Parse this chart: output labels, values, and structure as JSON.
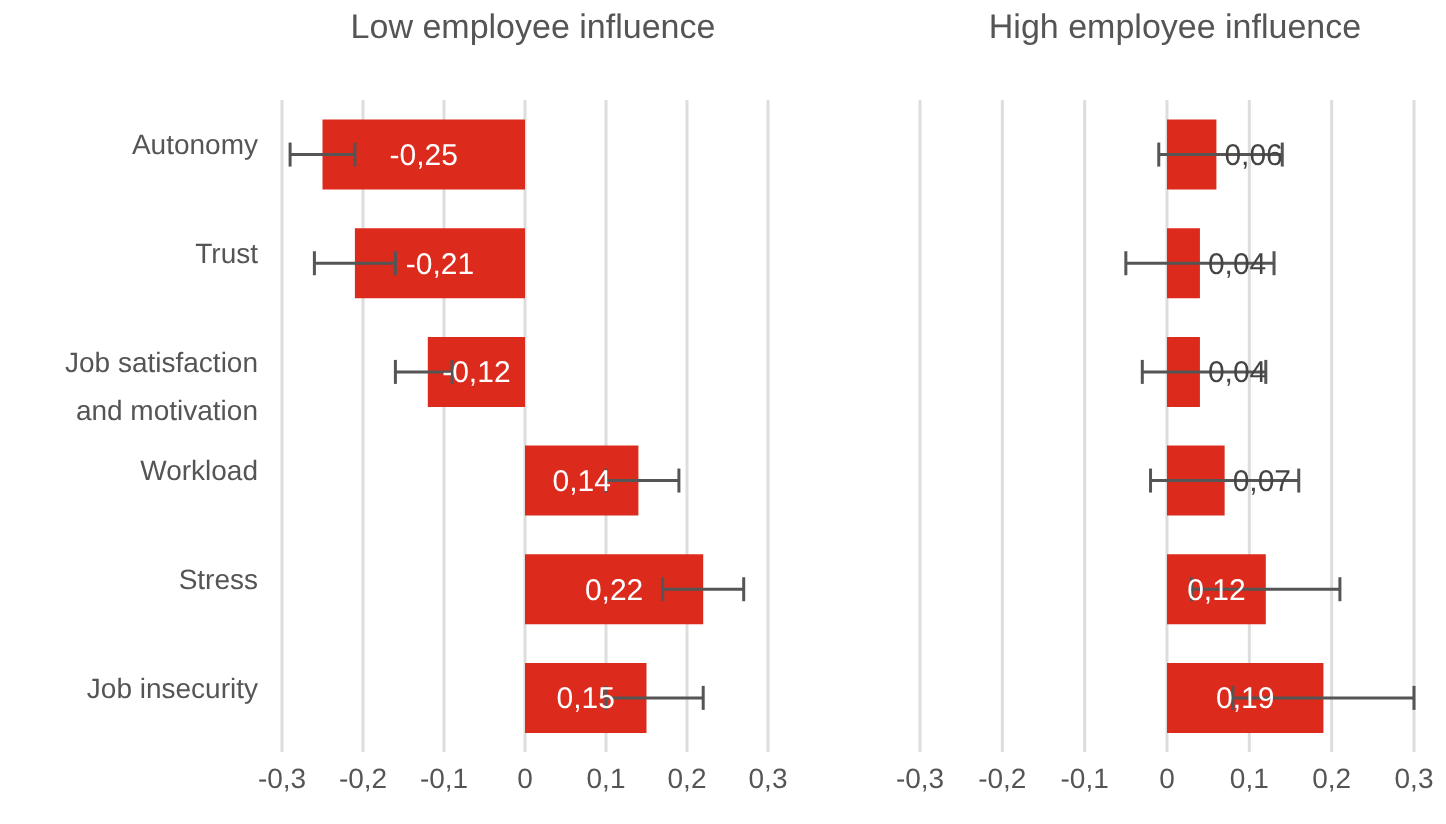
{
  "chart_data": [
    {
      "type": "bar",
      "orientation": "horizontal",
      "title": "Low employee influence",
      "categories": [
        "Autonomy",
        "Trust",
        "Job satisfaction and motivation",
        "Workload",
        "Stress",
        "Job insecurity"
      ],
      "values": [
        -0.25,
        -0.21,
        -0.12,
        0.14,
        0.22,
        0.15
      ],
      "errors": [
        [
          -0.29,
          -0.21
        ],
        [
          -0.26,
          -0.16
        ],
        [
          -0.16,
          -0.09
        ],
        [
          0.1,
          0.19
        ],
        [
          0.17,
          0.27
        ],
        [
          0.1,
          0.22
        ]
      ],
      "value_labels": [
        "-0,25",
        "-0,21",
        "-0,12",
        "0,14",
        "0,22",
        "0,15"
      ],
      "color": "#dc2a1c",
      "xlim": [
        -0.3,
        0.3
      ],
      "xticks": [
        {
          "value": -0.3,
          "label": "-0,3"
        },
        {
          "value": -0.2,
          "label": "-0,2"
        },
        {
          "value": -0.1,
          "label": "-0,1"
        },
        0,
        {
          "value": 0.1,
          "label": "0,1"
        },
        {
          "value": 0.2,
          "label": "0,2"
        },
        {
          "value": 0.3,
          "label": "0,3"
        }
      ],
      "grid": "x"
    },
    {
      "type": "bar",
      "orientation": "horizontal",
      "title": "High employee influence",
      "categories": [
        null,
        null,
        null,
        null,
        null,
        null
      ],
      "values": [
        0.06,
        0.04,
        0.04,
        0.07,
        0.12,
        0.19
      ],
      "errors": [
        [
          -0.01,
          0.14
        ],
        [
          -0.05,
          0.13
        ],
        [
          -0.03,
          0.12
        ],
        [
          -0.02,
          0.16
        ],
        [
          0.03,
          0.21
        ],
        [
          0.08,
          0.3
        ]
      ],
      "value_labels": [
        "0,06",
        "0,04",
        "0,04",
        "0,07",
        "0,12",
        "0,19"
      ],
      "color": "#dc2a1c",
      "xlim": [
        -0.3,
        0.3
      ],
      "xticks": [
        {
          "value": -0.3,
          "label": "-0,3"
        },
        {
          "value": -0.2,
          "label": "-0,2"
        },
        {
          "value": -0.1,
          "label": "-0,1"
        },
        0,
        {
          "value": 0.1,
          "label": "0,1"
        },
        {
          "value": 0.2,
          "label": "0,2"
        },
        {
          "value": 0.3,
          "label": "0,3"
        }
      ],
      "grid": "x",
      "tick_labels": "x"
    }
  ]
}
